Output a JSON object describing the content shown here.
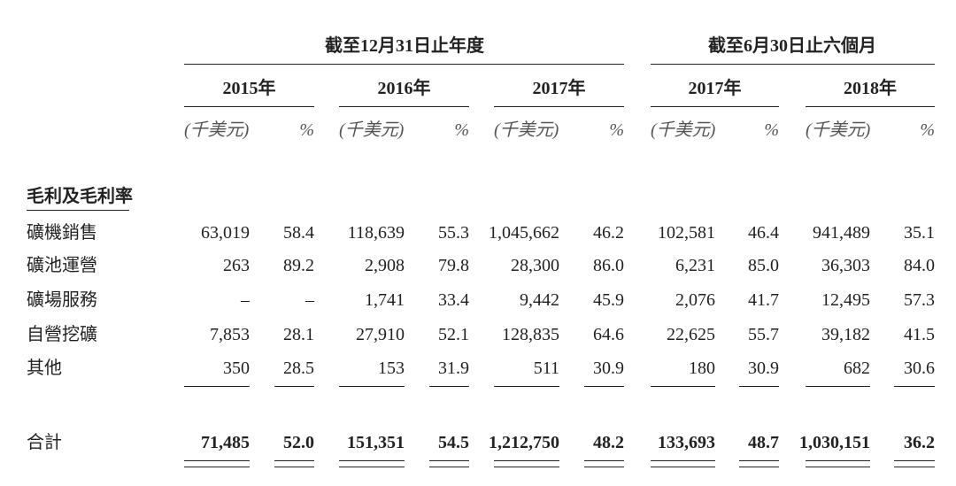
{
  "table": {
    "column_groups": [
      "截至12月31日止年度",
      "截至6月30日止六個月"
    ],
    "years": [
      "2015年",
      "2016年",
      "2017年",
      "2017年",
      "2018年"
    ],
    "unit_amount": "(千美元)",
    "unit_percent": "%",
    "section_label": "毛利及毛利率",
    "rows": [
      {
        "label": "礦機銷售",
        "cells": [
          "63,019",
          "58.4",
          "118,639",
          "55.3",
          "1,045,662",
          "46.2",
          "102,581",
          "46.4",
          "941,489",
          "35.1"
        ]
      },
      {
        "label": "礦池運營",
        "cells": [
          "263",
          "89.2",
          "2,908",
          "79.8",
          "28,300",
          "86.0",
          "6,231",
          "85.0",
          "36,303",
          "84.0"
        ]
      },
      {
        "label": "礦場服務",
        "cells": [
          "–",
          "–",
          "1,741",
          "33.4",
          "9,442",
          "45.9",
          "2,076",
          "41.7",
          "12,495",
          "57.3"
        ]
      },
      {
        "label": "自營挖礦",
        "cells": [
          "7,853",
          "28.1",
          "27,910",
          "52.1",
          "128,835",
          "64.6",
          "22,625",
          "55.7",
          "39,182",
          "41.5"
        ]
      },
      {
        "label": "其他",
        "cells": [
          "350",
          "28.5",
          "153",
          "31.9",
          "511",
          "30.9",
          "180",
          "30.9",
          "682",
          "30.6"
        ]
      }
    ],
    "total": {
      "label": "合計",
      "cells": [
        "71,485",
        "52.0",
        "151,351",
        "54.5",
        "1,212,750",
        "48.2",
        "133,693",
        "48.7",
        "1,030,151",
        "36.2"
      ]
    }
  }
}
